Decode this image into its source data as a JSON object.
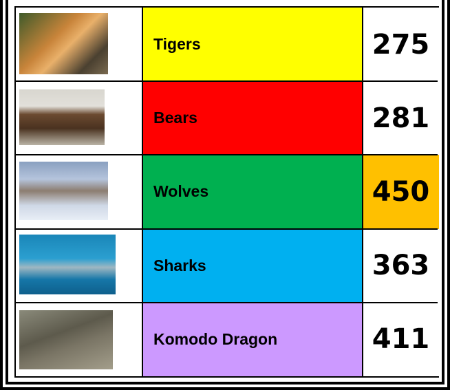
{
  "table": {
    "rows": [
      {
        "name": "Tigers",
        "value": 275,
        "color": "#ffff00",
        "value_color": "#ffffff"
      },
      {
        "name": "Bears",
        "value": 281,
        "color": "#ff0000",
        "value_color": "#ffffff"
      },
      {
        "name": "Wolves",
        "value": 450,
        "color": "#00b050",
        "value_color": "#ffc000"
      },
      {
        "name": "Sharks",
        "value": 363,
        "color": "#00b0f0",
        "value_color": "#ffffff"
      },
      {
        "name": "Komodo Dragon",
        "value": 411,
        "color": "#cc99ff",
        "value_color": "#ffffff"
      }
    ]
  }
}
